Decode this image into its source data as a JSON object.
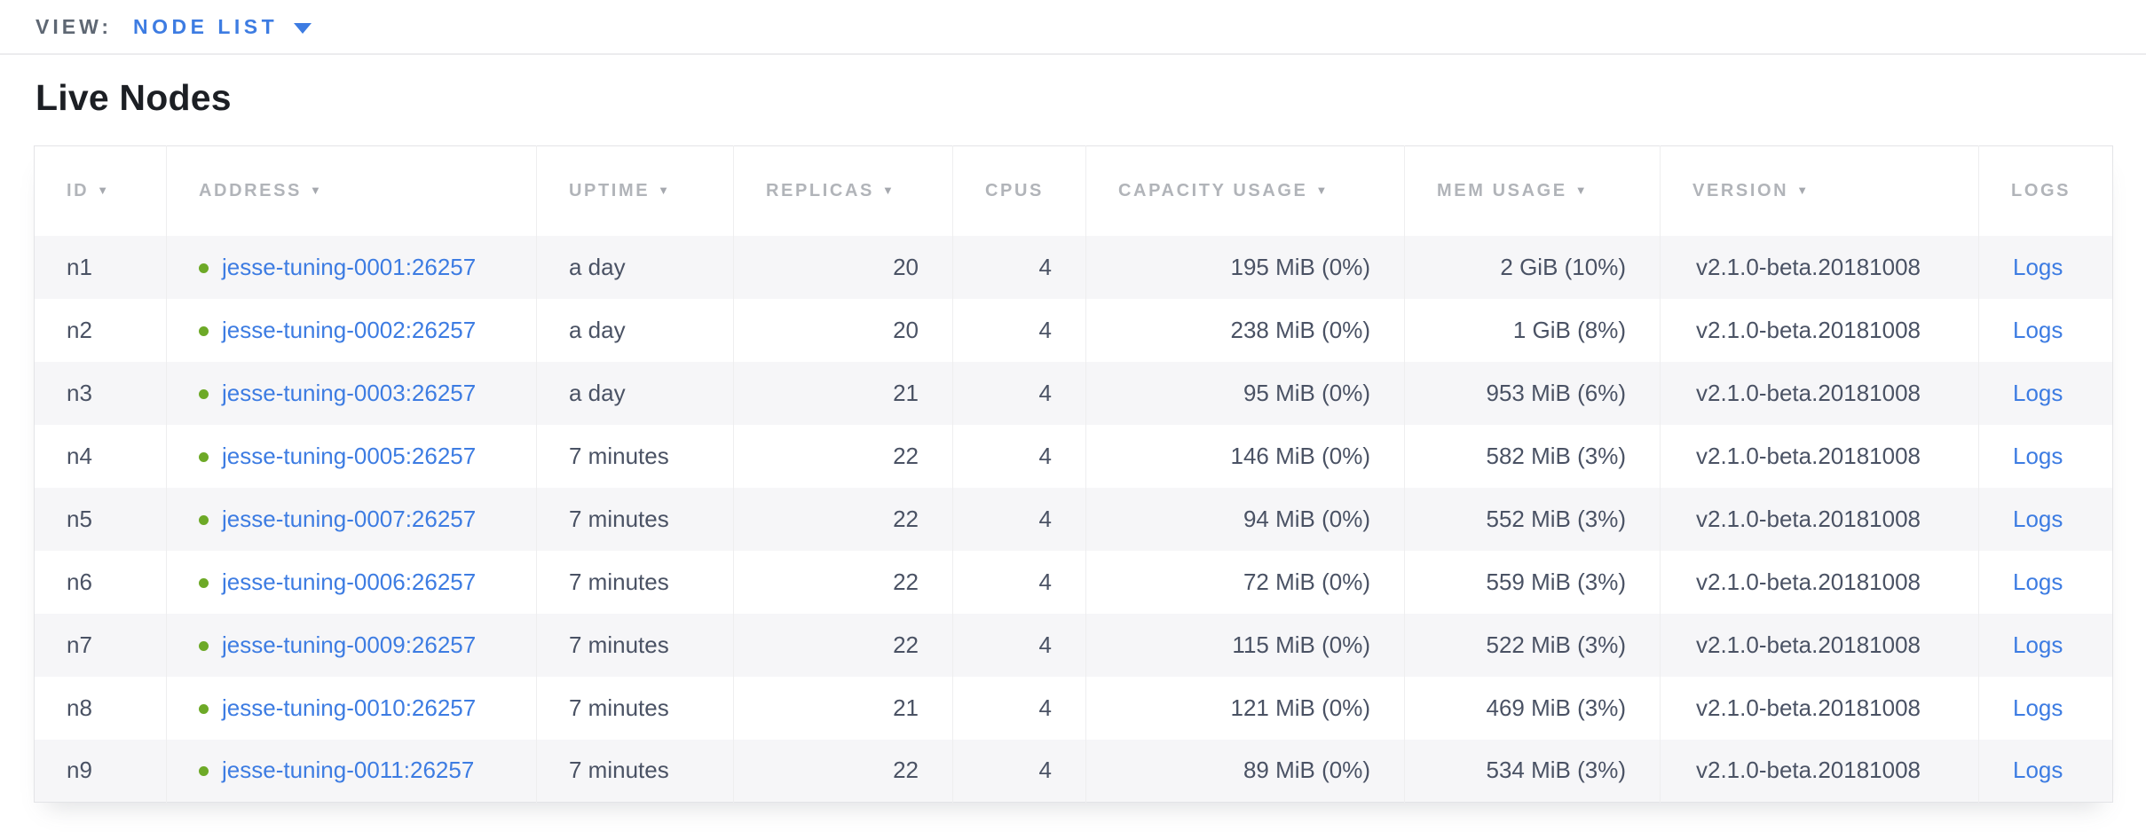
{
  "view_bar": {
    "label": "VIEW:",
    "selected_view": "NODE LIST"
  },
  "page": {
    "title": "Live Nodes"
  },
  "table": {
    "sort_indicator": "▼",
    "columns": [
      {
        "key": "id",
        "label": "ID",
        "sortable": true
      },
      {
        "key": "address",
        "label": "ADDRESS",
        "sortable": true
      },
      {
        "key": "uptime",
        "label": "UPTIME",
        "sortable": true
      },
      {
        "key": "replicas",
        "label": "REPLICAS",
        "sortable": true
      },
      {
        "key": "cpus",
        "label": "CPUS",
        "sortable": false
      },
      {
        "key": "capacity",
        "label": "CAPACITY USAGE",
        "sortable": true
      },
      {
        "key": "mem",
        "label": "MEM USAGE",
        "sortable": true
      },
      {
        "key": "version",
        "label": "VERSION",
        "sortable": true
      },
      {
        "key": "logs",
        "label": "LOGS",
        "sortable": false
      }
    ],
    "rows": [
      {
        "id": "n1",
        "address": "jesse-tuning-0001:26257",
        "uptime": "a day",
        "replicas": "20",
        "cpus": "4",
        "capacity": "195 MiB (0%)",
        "mem": "2 GiB (10%)",
        "version": "v2.1.0-beta.20181008",
        "logs": "Logs"
      },
      {
        "id": "n2",
        "address": "jesse-tuning-0002:26257",
        "uptime": "a day",
        "replicas": "20",
        "cpus": "4",
        "capacity": "238 MiB (0%)",
        "mem": "1 GiB (8%)",
        "version": "v2.1.0-beta.20181008",
        "logs": "Logs"
      },
      {
        "id": "n3",
        "address": "jesse-tuning-0003:26257",
        "uptime": "a day",
        "replicas": "21",
        "cpus": "4",
        "capacity": "95 MiB (0%)",
        "mem": "953 MiB (6%)",
        "version": "v2.1.0-beta.20181008",
        "logs": "Logs"
      },
      {
        "id": "n4",
        "address": "jesse-tuning-0005:26257",
        "uptime": "7 minutes",
        "replicas": "22",
        "cpus": "4",
        "capacity": "146 MiB (0%)",
        "mem": "582 MiB (3%)",
        "version": "v2.1.0-beta.20181008",
        "logs": "Logs"
      },
      {
        "id": "n5",
        "address": "jesse-tuning-0007:26257",
        "uptime": "7 minutes",
        "replicas": "22",
        "cpus": "4",
        "capacity": "94 MiB (0%)",
        "mem": "552 MiB (3%)",
        "version": "v2.1.0-beta.20181008",
        "logs": "Logs"
      },
      {
        "id": "n6",
        "address": "jesse-tuning-0006:26257",
        "uptime": "7 minutes",
        "replicas": "22",
        "cpus": "4",
        "capacity": "72 MiB (0%)",
        "mem": "559 MiB (3%)",
        "version": "v2.1.0-beta.20181008",
        "logs": "Logs"
      },
      {
        "id": "n7",
        "address": "jesse-tuning-0009:26257",
        "uptime": "7 minutes",
        "replicas": "22",
        "cpus": "4",
        "capacity": "115 MiB (0%)",
        "mem": "522 MiB (3%)",
        "version": "v2.1.0-beta.20181008",
        "logs": "Logs"
      },
      {
        "id": "n8",
        "address": "jesse-tuning-0010:26257",
        "uptime": "7 minutes",
        "replicas": "21",
        "cpus": "4",
        "capacity": "121 MiB (0%)",
        "mem": "469 MiB (3%)",
        "version": "v2.1.0-beta.20181008",
        "logs": "Logs"
      },
      {
        "id": "n9",
        "address": "jesse-tuning-0011:26257",
        "uptime": "7 minutes",
        "replicas": "22",
        "cpus": "4",
        "capacity": "89 MiB (0%)",
        "mem": "534 MiB (3%)",
        "version": "v2.1.0-beta.20181008",
        "logs": "Logs"
      }
    ]
  },
  "colors": {
    "accent_blue": "#3D7CE2",
    "status_green": "#6DA927",
    "header_gray": "#B1B4B9",
    "body_text": "#4A5264",
    "view_label_gray": "#5E6773",
    "row_alt_bg": "#F6F6F8",
    "border": "#E3E4E7"
  }
}
